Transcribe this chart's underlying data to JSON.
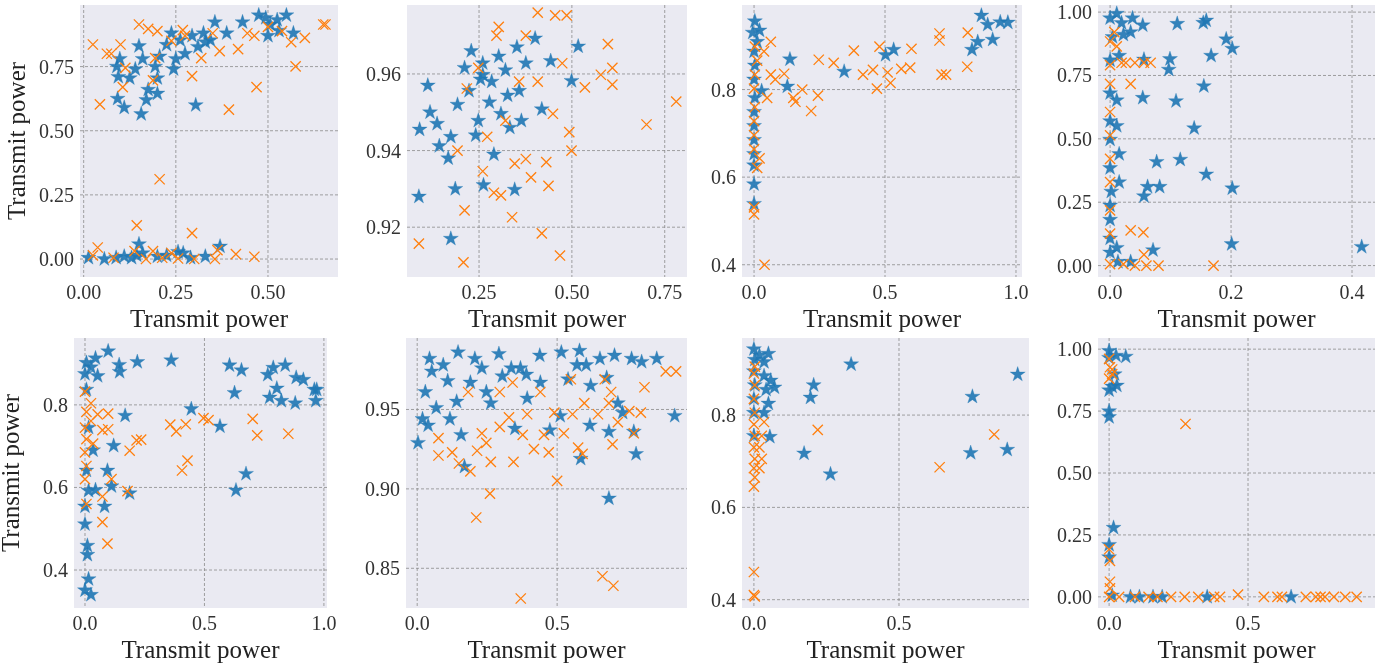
{
  "chart_data": [
    {
      "type": "scatter",
      "xlabel": "Transmit power",
      "ylabel": "Transmit power",
      "xlim": [
        -0.01,
        0.69
      ],
      "ylim": [
        -0.07,
        0.99
      ],
      "xticks": [
        {
          "value": 0,
          "label": "0.00"
        },
        0.25,
        {
          "value": 0.5,
          "label": "0.50"
        }
      ],
      "yticks": [
        {
          "value": 0,
          "label": "0.00"
        },
        0.25,
        {
          "value": 0.5,
          "label": "0.50"
        },
        0.75
      ],
      "grid": true,
      "series": [
        {
          "color": "#1f77b4",
          "marker": "star",
          "x": [
            0.098,
            0.09,
            0.094,
            0.092,
            0.11,
            0.14,
            0.15,
            0.16,
            0.156,
            0.17,
            0.194,
            0.2,
            0.206,
            0.225,
            0.238,
            0.244,
            0.262,
            0.275,
            0.294,
            0.304,
            0.31,
            0.325,
            0.344,
            0.356,
            0.388,
            0.431,
            0.475,
            0.494,
            0.5,
            0.525,
            0.55,
            0.53,
            0.569,
            0.506,
            0.25,
            0.125,
            0.175,
            0.33,
            0.2,
            0.056,
            0.088,
            0.11,
            0.13,
            0.144,
            0.15,
            0.16,
            0.2,
            0.225,
            0.256,
            0.27,
            0.29,
            0.33,
            0.37,
            0.013
          ],
          "values": [
            0.78,
            0.75,
            0.71,
            0.625,
            0.59,
            0.74,
            0.83,
            0.78,
            0.565,
            0.62,
            0.75,
            0.645,
            0.79,
            0.835,
            0.88,
            0.74,
            0.853,
            0.8,
            0.87,
            0.6,
            0.827,
            0.88,
            0.853,
            0.923,
            0.88,
            0.923,
            0.95,
            0.94,
            0.87,
            0.932,
            0.95,
            0.89,
            0.88,
            0.914,
            0.78,
            0.705,
            0.66,
            0.845,
            0.705,
            0,
            0.005,
            0.01,
            0.005,
            0.014,
            0.058,
            0.023,
            0.01,
            0.014,
            0.028,
            0.023,
            0.005,
            0.01,
            0.049,
            0.005
          ]
        },
        {
          "color": "#ff7f0e",
          "marker": "cross",
          "x": [
            0.025,
            0.063,
            0.075,
            0.1,
            0.113,
            0.106,
            0.044,
            0.15,
            0.175,
            0.2,
            0.194,
            0.188,
            0.206,
            0.238,
            0.269,
            0.275,
            0.294,
            0.319,
            0.35,
            0.369,
            0.394,
            0.419,
            0.463,
            0.469,
            0.5,
            0.538,
            0.575,
            0.6,
            0.65,
            0.656,
            0.563,
            0.444,
            0.025,
            0.038,
            0.081,
            0.144,
            0.138,
            0.169,
            0.188,
            0.213,
            0.256,
            0.294,
            0.3,
            0.356,
            0.413,
            0.463,
            0.363,
            0.238
          ],
          "values": [
            0.836,
            0.8,
            0.8,
            0.836,
            0.745,
            0.67,
            0.603,
            0.914,
            0.897,
            0.888,
            0.783,
            0.696,
            0.311,
            0.85,
            0.892,
            0.87,
            0.713,
            0.783,
            0.88,
            0.81,
            0.582,
            0.818,
            0.87,
            0.67,
            0.905,
            0.888,
            0.751,
            0.862,
            0.914,
            0.914,
            0.845,
            0.88,
            0.014,
            0.045,
            0.005,
            0.131,
            0.031,
            0,
            0.031,
            0.005,
            0.002,
            0.101,
            0,
            0,
            0.019,
            0.009,
            0.035,
            0.023
          ]
        }
      ]
    },
    {
      "type": "scatter",
      "xlabel": "Transmit power",
      "xlim": [
        0.056,
        0.81
      ],
      "ylim": [
        0.907,
        0.978
      ],
      "xticks": [
        0.25,
        {
          "value": 0.5,
          "label": "0.50"
        },
        0.75
      ],
      "yticks": [
        0.92,
        0.94,
        0.96
      ],
      "grid": true,
      "series": [
        {
          "color": "#1f77b4",
          "marker": "star",
          "x": [
            0.088,
            0.09,
            0.112,
            0.118,
            0.137,
            0.167,
            0.174,
            0.186,
            0.192,
            0.211,
            0.223,
            0.229,
            0.241,
            0.254,
            0.26,
            0.262,
            0.278,
            0.284,
            0.29,
            0.309,
            0.321,
            0.333,
            0.352,
            0.358,
            0.364,
            0.346,
            0.376,
            0.401,
            0.419,
            0.443,
            0.499,
            0.517,
            0.327,
            0.248,
            0.174,
            0.143,
            0.26,
            0.303
          ],
          "values": [
            0.928,
            0.9455,
            0.957,
            0.95,
            0.947,
            0.938,
            0.917,
            0.93,
            0.952,
            0.9616,
            0.9556,
            0.966,
            0.944,
            0.9586,
            0.9628,
            0.931,
            0.9526,
            0.958,
            0.939,
            0.9496,
            0.961,
            0.946,
            0.967,
            0.9556,
            0.9478,
            0.9298,
            0.9628,
            0.9693,
            0.9508,
            0.9634,
            0.9582,
            0.9672,
            0.9544,
            0.9478,
            0.9436,
            0.9412,
            0.9598,
            0.9646
          ]
        },
        {
          "color": "#ff7f0e",
          "marker": "cross",
          "x": [
            0.088,
            0.208,
            0.211,
            0.192,
            0.217,
            0.248,
            0.26,
            0.272,
            0.29,
            0.297,
            0.303,
            0.309,
            0.321,
            0.339,
            0.346,
            0.358,
            0.376,
            0.376,
            0.39,
            0.408,
            0.408,
            0.419,
            0.431,
            0.437,
            0.455,
            0.468,
            0.474,
            0.486,
            0.493,
            0.499,
            0.535,
            0.578,
            0.597,
            0.609,
            0.609,
            0.701,
            0.781,
            0.449
          ],
          "values": [
            0.9157,
            0.9108,
            0.9244,
            0.94,
            0.9562,
            0.9616,
            0.9346,
            0.9436,
            0.929,
            0.97,
            0.9723,
            0.9283,
            0.9478,
            0.9226,
            0.9366,
            0.958,
            0.97,
            0.9378,
            0.933,
            0.958,
            0.976,
            0.9184,
            0.937,
            0.9308,
            0.9753,
            0.9126,
            0.9628,
            0.9753,
            0.9448,
            0.94,
            0.9565,
            0.9598,
            0.9678,
            0.9616,
            0.9572,
            0.9468,
            0.9528,
            0.9496
          ]
        }
      ]
    },
    {
      "type": "scatter",
      "xlabel": "Transmit power",
      "xlim": [
        -0.046,
        1.023
      ],
      "ylim": [
        0.372,
        0.993
      ],
      "xticks": [
        {
          "value": 0,
          "label": "0.0"
        },
        0.5,
        {
          "value": 1,
          "label": "1.0"
        }
      ],
      "yticks": [
        0.4,
        0.6,
        0.8
      ],
      "grid": true,
      "series": [
        {
          "color": "#1f77b4",
          "marker": "star",
          "x": [
            0.003,
            -0.005,
            0.012,
            0,
            0.003,
            0,
            0.003,
            0,
            0,
            0,
            0,
            0,
            0,
            0,
            0.021,
            0.029,
            0.127,
            0.137,
            0.344,
            0.502,
            0.533,
            0.832,
            0.854,
            0.868,
            0.892,
            0.911,
            0.94,
            0.969
          ],
          "values": [
            0.956,
            0.93,
            0.909,
            0.887,
            0.855,
            0.823,
            0.781,
            0.749,
            0.717,
            0.685,
            0.653,
            0.627,
            0.584,
            0.539,
            0.935,
            0.797,
            0.807,
            0.869,
            0.841,
            0.879,
            0.891,
            0.891,
            0.909,
            0.969,
            0.948,
            0.914,
            0.954,
            0.953
          ]
        },
        {
          "color": "#ff7f0e",
          "marker": "cross",
          "x": [
            0,
            0,
            0.04,
            0.003,
            0.012,
            0.003,
            0,
            0.003,
            0,
            0,
            0,
            0.012,
            0.021,
            0.038,
            0.064,
            0.064,
            0.05,
            0.081,
            0.115,
            0.15,
            0.158,
            0.184,
            0.218,
            0.244,
            0.247,
            0.304,
            0.381,
            0.416,
            0.454,
            0.469,
            0.479,
            0.51,
            0.521,
            0.562,
            0.596,
            0.601,
            0.708,
            0.708,
            0.716,
            0.733,
            0.814,
            0.816
          ],
          "values": [
            0.531,
            0.515,
            0.4,
            0.898,
            0.866,
            0.834,
            0.802,
            0.76,
            0.728,
            0.696,
            0.664,
            0.621,
            0.643,
            0.887,
            0.909,
            0.834,
            0.781,
            0.823,
            0.836,
            0.781,
            0.772,
            0.8,
            0.751,
            0.786,
            0.868,
            0.861,
            0.889,
            0.834,
            0.845,
            0.802,
            0.898,
            0.839,
            0.815,
            0.847,
            0.85,
            0.893,
            0.928,
            0.912,
            0.834,
            0.834,
            0.852,
            0.93
          ]
        }
      ]
    },
    {
      "type": "scatter",
      "xlabel": "Transmit power",
      "xlim": [
        -0.02,
        0.438
      ],
      "ylim": [
        -0.045,
        1.028
      ],
      "xticks": [
        {
          "value": 0,
          "label": "0.0"
        },
        0.2,
        0.4
      ],
      "yticks": [
        {
          "value": 0,
          "label": "0.00"
        },
        0.25,
        {
          "value": 0.5,
          "label": "0.50"
        },
        0.75,
        {
          "value": 1,
          "label": "1.00"
        }
      ],
      "grid": true,
      "series": [
        {
          "color": "#1f77b4",
          "marker": "star",
          "x": [
            0,
            0.004,
            0,
            0,
            0,
            0,
            0,
            0.002,
            0,
            0,
            0,
            0,
            0.011,
            0.019,
            0.022,
            0.015,
            0.011,
            0.011,
            0.015,
            0.015,
            0.011,
            0.013,
            0.037,
            0.034,
            0.054,
            0.056,
            0.054,
            0.056,
            0.062,
            0.071,
            0.077,
            0.082,
            0.099,
            0.097,
            0.109,
            0.111,
            0.116,
            0.139,
            0.154,
            0.159,
            0.155,
            0.159,
            0.167,
            0.192,
            0.202,
            0.202,
            0.201,
            0.416,
            0.034
          ],
          "values": [
            0.976,
            0.902,
            0.81,
            0.68,
            0.57,
            0.497,
            0.385,
            0.292,
            0.237,
            0.181,
            0.107,
            0.052,
            0.994,
            0.957,
            0.911,
            0.828,
            0.652,
            0.551,
            0.44,
            0.329,
            0.07,
            0.015,
            0.976,
            0.921,
            0.948,
            0.813,
            0.662,
            0.274,
            0.311,
            0.061,
            0.409,
            0.311,
            0.815,
            0.773,
            0.649,
            0.954,
            0.418,
            0.542,
            0.958,
            0.967,
            0.708,
            0.36,
            0.828,
            0.893,
            0.856,
            0.305,
            0.085,
            0.074,
            0.015
          ]
        },
        {
          "color": "#ff7f0e",
          "marker": "cross",
          "x": [
            0,
            0,
            0,
            0,
            0,
            0,
            0,
            0,
            0,
            0,
            0.007,
            0.011,
            0.019,
            0.026,
            0.034,
            0.034,
            0.041,
            0.056,
            0.067,
            0.055,
            0.056,
            0.041,
            0.06,
            0.08,
            0.171,
            0.022
          ],
          "values": [
            0.884,
            0.791,
            0.717,
            0.606,
            0.514,
            0.421,
            0.329,
            0.218,
            0.126,
            0.006,
            0.921,
            0.865,
            0.8,
            0.8,
            0.717,
            0.139,
            0.8,
            0.8,
            0.8,
            0.131,
            0.043,
            0,
            0,
            0,
            0,
            0.006
          ]
        }
      ]
    },
    {
      "type": "scatter",
      "xlabel": "Transmit power",
      "ylabel": "Transmit power",
      "xlim": [
        -0.046,
        1.013
      ],
      "ylim": [
        0.308,
        0.962
      ],
      "xticks": [
        {
          "value": 0,
          "label": "0.0"
        },
        0.5,
        {
          "value": 1,
          "label": "1.0"
        }
      ],
      "yticks": [
        0.4,
        0.6,
        0.8
      ],
      "grid": true,
      "series": [
        {
          "color": "#1f77b4",
          "marker": "star",
          "x": [
            0.006,
            0,
            0.025,
            0.044,
            0.053,
            0.006,
            0.015,
            0.034,
            0.006,
            0.015,
            0,
            0,
            0.01,
            0.01,
            0.015,
            0,
            0.025,
            0.044,
            0.082,
            0.094,
            0.097,
            0.111,
            0.12,
            0.143,
            0.145,
            0.168,
            0.187,
            0.219,
            0.361,
            0.445,
            0.605,
            0.655,
            0.626,
            0.565,
            0.632,
            0.674,
            0.765,
            0.788,
            0.803,
            0.838,
            0.884,
            0.914,
            0.96,
            0.966,
            0.822,
            0.773,
            0.88,
            0.97
          ],
          "values": [
            0.902,
            0.875,
            0.891,
            0.913,
            0.87,
            0.837,
            0.745,
            0.69,
            0.641,
            0.592,
            0.554,
            0.511,
            0.459,
            0.437,
            0.378,
            0.351,
            0.34,
            0.594,
            0.554,
            0.641,
            0.93,
            0.603,
            0.701,
            0.897,
            0.88,
            0.774,
            0.586,
            0.904,
            0.908,
            0.79,
            0.896,
            0.884,
            0.829,
            0.748,
            0.593,
            0.633,
            0.873,
            0.89,
            0.84,
            0.896,
            0.866,
            0.861,
            0.837,
            0.81,
            0.81,
            0.818,
            0.804,
            0.837
          ]
        },
        {
          "color": "#ff7f0e",
          "marker": "cross",
          "x": [
            0,
            0.006,
            0,
            0.006,
            0,
            0.006,
            0,
            0.006,
            0.025,
            0.053,
            0.073,
            0.073,
            0.073,
            0.094,
            0.097,
            0.097,
            0.111,
            0.187,
            0.178,
            0.216,
            0.235,
            0.357,
            0.382,
            0.406,
            0.422,
            0.429,
            0.496,
            0.517,
            0.702,
            0.721,
            0.851,
            0.025,
            0.034
          ],
          "values": [
            0.832,
            0.783,
            0.745,
            0.717,
            0.685,
            0.652,
            0.62,
            0.56,
            0.804,
            0.777,
            0.739,
            0.578,
            0.516,
            0.464,
            0.779,
            0.741,
            0.62,
            0.689,
            0.591,
            0.714,
            0.716,
            0.752,
            0.736,
            0.641,
            0.753,
            0.665,
            0.768,
            0.763,
            0.766,
            0.726,
            0.73,
            0.761,
            0.706
          ]
        }
      ]
    },
    {
      "type": "scatter",
      "xlabel": "Transmit power",
      "xlim": [
        -0.04,
        0.964
      ],
      "ylim": [
        0.825,
        0.995
      ],
      "xticks": [
        {
          "value": 0,
          "label": "0.0"
        },
        0.5
      ],
      "yticks": [
        0.85,
        {
          "value": 0.9,
          "label": "0.90"
        },
        0.95
      ],
      "grid": true,
      "series": [
        {
          "color": "#1f77b4",
          "marker": "star",
          "x": [
            0.003,
            0.019,
            0.029,
            0.044,
            0.052,
            0.039,
            0.068,
            0.093,
            0.109,
            0.117,
            0.146,
            0.141,
            0.157,
            0.169,
            0.19,
            0.206,
            0.231,
            0.247,
            0.263,
            0.292,
            0.304,
            0.336,
            0.349,
            0.369,
            0.39,
            0.393,
            0.438,
            0.44,
            0.515,
            0.511,
            0.474,
            0.539,
            0.58,
            0.571,
            0.584,
            0.604,
            0.617,
            0.62,
            0.653,
            0.677,
            0.685,
            0.685,
            0.705,
            0.734,
            0.766,
            0.782,
            0.802,
            0.856,
            0.92,
            0.774,
            0.717
          ],
          "values": [
            0.929,
            0.944,
            0.961,
            0.982,
            0.974,
            0.94,
            0.951,
            0.978,
            0.968,
            0.944,
            0.986,
            0.955,
            0.934,
            0.914,
            0.967,
            0.982,
            0.976,
            0.961,
            0.954,
            0.985,
            0.971,
            0.976,
            0.938,
            0.976,
            0.972,
            0.957,
            0.984,
            0.967,
            0.986,
            0.946,
            0.937,
            0.969,
            0.987,
            0.978,
            0.919,
            0.978,
            0.94,
            0.965,
            0.982,
            0.97,
            0.894,
            0.936,
            0.984,
            0.948,
            0.982,
            0.922,
            0.98,
            0.982,
            0.946,
            0.936,
            0.954
          ]
        },
        {
          "color": "#ff7f0e",
          "marker": "cross",
          "x": [
            0.076,
            0.076,
            0.125,
            0.149,
            0.182,
            0.19,
            0.211,
            0.214,
            0.231,
            0.247,
            0.26,
            0.263,
            0.295,
            0.295,
            0.328,
            0.341,
            0.344,
            0.37,
            0.377,
            0.393,
            0.417,
            0.44,
            0.453,
            0.47,
            0.49,
            0.5,
            0.524,
            0.549,
            0.555,
            0.575,
            0.591,
            0.597,
            0.646,
            0.662,
            0.67,
            0.693,
            0.698,
            0.701,
            0.717,
            0.758,
            0.774,
            0.799,
            0.812,
            0.888,
            0.925,
            0.685
          ],
          "values": [
            0.932,
            0.921,
            0.923,
            0.916,
            0.961,
            0.911,
            0.882,
            0.924,
            0.935,
            0.929,
            0.897,
            0.917,
            0.939,
            0.961,
            0.945,
            0.967,
            0.917,
            0.831,
            0.934,
            0.947,
            0.925,
            0.961,
            0.934,
            0.923,
            0.948,
            0.905,
            0.935,
            0.969,
            0.947,
            0.926,
            0.922,
            0.954,
            0.947,
            0.845,
            0.969,
            0.961,
            0.928,
            0.839,
            0.942,
            0.949,
            0.935,
            0.948,
            0.964,
            0.974,
            0.974,
            0.954
          ]
        }
      ]
    },
    {
      "type": "scatter",
      "xlabel": "Transmit power",
      "xlim": [
        -0.041,
        0.948
      ],
      "ylim": [
        0.382,
        0.967
      ],
      "xticks": [
        {
          "value": 0,
          "label": "0.0"
        },
        0.5
      ],
      "yticks": [
        0.4,
        0.6,
        0.8
      ],
      "grid": true,
      "series": [
        {
          "color": "#1f77b4",
          "marker": "star",
          "x": [
            0,
            0.003,
            0,
            0.003,
            0,
            0,
            0,
            0.019,
            0.035,
            0.05,
            0.035,
            0.035,
            0.05,
            0.042,
            0.071,
            0.055,
            0.173,
            0.195,
            0.206,
            0.264,
            0.335,
            0.753,
            0.747,
            0.873,
            0.909,
            0.058
          ],
          "values": [
            0.943,
            0.92,
            0.895,
            0.865,
            0.835,
            0.805,
            0.755,
            0.93,
            0.915,
            0.933,
            0.885,
            0.805,
            0.825,
            0.855,
            0.86,
            0.753,
            0.717,
            0.838,
            0.865,
            0.672,
            0.91,
            0.84,
            0.718,
            0.725,
            0.888,
            0.875
          ]
        },
        {
          "color": "#ff7f0e",
          "marker": "cross",
          "x": [
            0,
            0,
            0.003,
            0,
            0.003,
            0,
            0.003,
            0,
            0.003,
            0,
            0.003,
            0,
            0.003,
            0,
            0.003,
            0.019,
            0.027,
            0.027,
            0.035,
            0.22,
            0.64,
            0.828,
            0.019
          ],
          "values": [
            0.46,
            0.41,
            0.407,
            0.645,
            0.665,
            0.685,
            0.705,
            0.73,
            0.755,
            0.78,
            0.805,
            0.835,
            0.865,
            0.89,
            0.905,
            0.73,
            0.705,
            0.755,
            0.785,
            0.768,
            0.687,
            0.758,
            0.685
          ]
        }
      ]
    },
    {
      "type": "scatter",
      "xlabel": "Transmit power",
      "xlim": [
        -0.04,
        0.957
      ],
      "ylim": [
        -0.045,
        1.045
      ],
      "xticks": [
        {
          "value": 0,
          "label": "0.0"
        },
        0.5
      ],
      "yticks": [
        {
          "value": 0,
          "label": "0.00"
        },
        0.25,
        {
          "value": 0.5,
          "label": "0.50"
        },
        0.75,
        {
          "value": 1,
          "label": "1.00"
        }
      ],
      "grid": true,
      "series": [
        {
          "color": "#1f77b4",
          "marker": "star",
          "x": [
            0,
            0.025,
            0,
            0.02,
            0,
            0,
            0.016,
            0,
            0,
            0.028,
            0.011,
            0.06,
            0.011,
            0.077,
            0.109,
            0.158,
            0.191,
            0.353,
            0.655,
            0
          ],
          "values": [
            0.993,
            0.974,
            0.965,
            0.899,
            0.75,
            0.726,
            0.279,
            0.21,
            0.16,
            0.853,
            0.849,
            0.97,
            0.006,
            0,
            0,
            0,
            0,
            0,
            0,
            0.834
          ]
        },
        {
          "color": "#ff7f0e",
          "marker": "cross",
          "x": [
            0,
            0.003,
            0.011,
            0,
            0,
            0.003,
            0.003,
            0.003,
            0,
            0.036,
            0.093,
            0.142,
            0.174,
            0.223,
            0.272,
            0.321,
            0.378,
            0.399,
            0.464,
            0.557,
            0.606,
            0.622,
            0.708,
            0.744,
            0.761,
            0.777,
            0.809,
            0.85,
            0.891,
            0.275,
            0.011
          ],
          "values": [
            0.961,
            0.927,
            0.899,
            0.881,
            0.192,
            0.145,
            0.061,
            0.034,
            0,
            0,
            0,
            0,
            0,
            0,
            0,
            0,
            0,
            0,
            0.009,
            0,
            0,
            0,
            0,
            0,
            0,
            0,
            0,
            0,
            0,
            0.698,
            0.918
          ]
        }
      ]
    }
  ]
}
